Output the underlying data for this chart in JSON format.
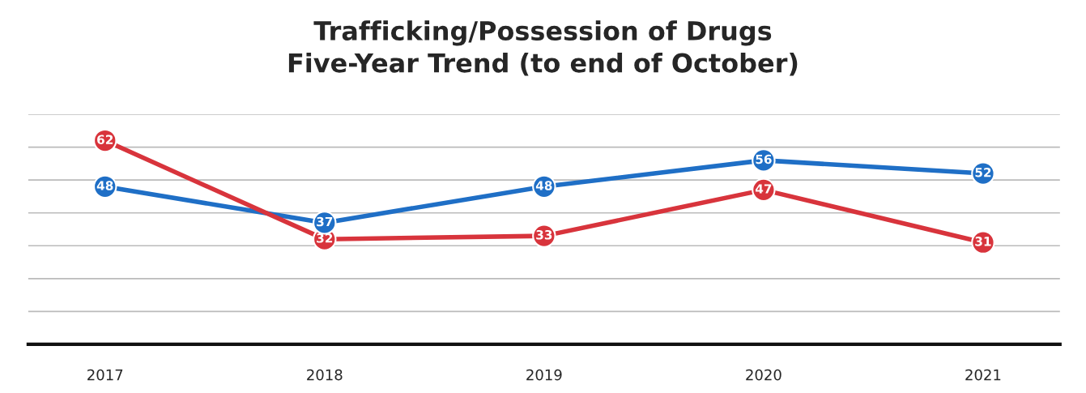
{
  "chart_data": {
    "type": "line",
    "title": "Trafficking/Possession of Drugs\nFive-Year Trend (to end of October)",
    "categories": [
      "2017",
      "2018",
      "2019",
      "2020",
      "2021"
    ],
    "series": [
      {
        "color": "#1f6fc6",
        "values": [
          48,
          37,
          48,
          56,
          52
        ]
      },
      {
        "color": "#d8343c",
        "values": [
          62,
          32,
          33,
          47,
          31
        ]
      }
    ],
    "ylim": [
      0,
      70
    ],
    "yticks": [
      {
        "value": 0,
        "label": null
      },
      {
        "value": 10,
        "label": null
      },
      {
        "value": 20,
        "label": null
      },
      {
        "value": 30,
        "label": null
      },
      {
        "value": 40,
        "label": null
      },
      {
        "value": 50,
        "label": null
      },
      {
        "value": 60,
        "label": null
      },
      {
        "value": 70,
        "label": null
      }
    ],
    "tick_labels": "x",
    "grid": "y",
    "marker": "circle",
    "data_labels": true,
    "legend": false
  }
}
